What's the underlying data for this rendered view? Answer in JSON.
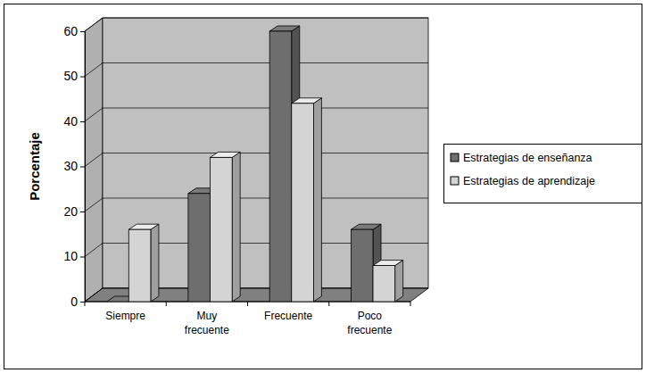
{
  "chart_data": {
    "type": "bar",
    "y_label": "Porcentaje",
    "categories": [
      "Siempre",
      "Muy frecuente",
      "Frecuente",
      "Poco frecuente"
    ],
    "series": [
      {
        "name": "Estrategias de enseñanza",
        "color": "#6e6e6e",
        "values": [
          0,
          24,
          60,
          16
        ]
      },
      {
        "name": "Estrategias de aprendizaje",
        "color": "#d4d4d4",
        "values": [
          16,
          32,
          44,
          8
        ]
      }
    ],
    "ylim": [
      0,
      60
    ],
    "yticks": [
      0,
      10,
      20,
      30,
      40,
      50,
      60
    ],
    "grid": true,
    "legend": "right"
  }
}
